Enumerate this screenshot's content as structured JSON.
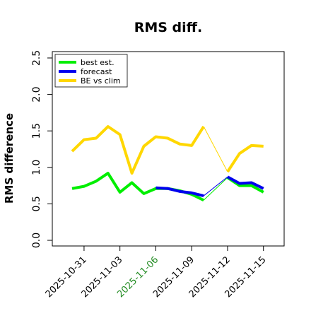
{
  "chart_data": {
    "type": "line",
    "title": "RMS diff.",
    "ylabel": "RMS difference",
    "xlabel": "",
    "ylim": [
      0,
      2.5
    ],
    "yticks": [
      "0.0",
      "0.5",
      "1.0",
      "1.5",
      "2.0",
      "2.5"
    ],
    "grid": false,
    "legend_position": "top-left",
    "x": [
      "2025-10-30",
      "2025-10-31",
      "2025-11-01",
      "2025-11-02",
      "2025-11-03",
      "2025-11-04",
      "2025-11-05",
      "2025-11-06",
      "2025-11-07",
      "2025-11-08",
      "2025-11-09",
      "2025-11-10",
      "2025-11-11",
      "2025-11-12",
      "2025-11-13",
      "2025-11-14",
      "2025-11-15"
    ],
    "xticks": [
      {
        "label": "2025-10-31",
        "color": "#000000"
      },
      {
        "label": "2025-11-03",
        "color": "#000000"
      },
      {
        "label": "2025-11-06",
        "color": "#228b22"
      },
      {
        "label": "2025-11-09",
        "color": "#000000"
      },
      {
        "label": "2025-11-12",
        "color": "#000000"
      },
      {
        "label": "2025-11-15",
        "color": "#000000"
      }
    ],
    "series": [
      {
        "name": "best est.",
        "color": "#00ee00",
        "values": [
          0.71,
          0.74,
          0.81,
          0.92,
          0.66,
          0.79,
          0.64,
          0.71,
          0.71,
          0.68,
          0.63,
          0.55,
          null,
          0.86,
          0.75,
          0.75,
          0.66
        ],
        "connectors": [
          [
            11,
            13
          ]
        ]
      },
      {
        "name": "forecast",
        "color": "#0000ee",
        "values": [
          null,
          null,
          null,
          null,
          null,
          null,
          null,
          0.72,
          0.71,
          0.67,
          0.65,
          0.61,
          null,
          0.87,
          0.78,
          0.79,
          0.71
        ],
        "connectors": [
          [
            11,
            13
          ]
        ]
      },
      {
        "name": "BE vs clim",
        "color": "#ffd700",
        "values": [
          1.22,
          1.38,
          1.4,
          1.56,
          1.45,
          0.92,
          1.29,
          1.42,
          1.4,
          1.32,
          1.3,
          1.56,
          null,
          0.94,
          1.19,
          1.3,
          1.29
        ],
        "connectors": [
          [
            11,
            13
          ]
        ]
      }
    ]
  }
}
